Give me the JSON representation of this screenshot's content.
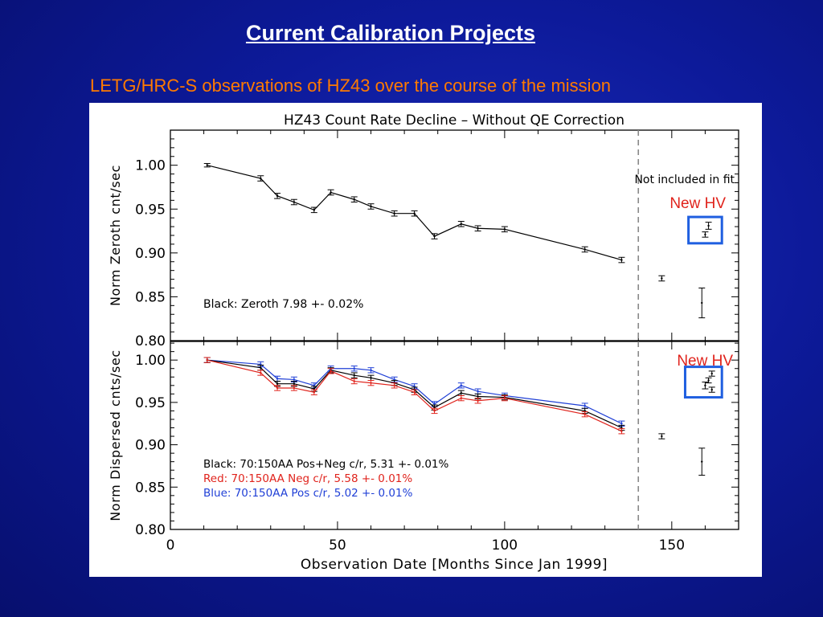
{
  "slide": {
    "title": "Current Calibration Projects",
    "subtitle": "LETG/HRC-S observations of HZ43 over the course of the mission"
  },
  "colors": {
    "background": "#0d1a9a",
    "title": "#ffffff",
    "subtitle": "#ff7a00",
    "black_series": "#000000",
    "red_series": "#e0231c",
    "blue_series": "#1f3fd6",
    "highlight_box": "#1f5fe0",
    "new_hv_label": "#e0231c"
  },
  "chart_data": [
    {
      "type": "line",
      "title": "HZ43 Count Rate Decline – Without QE Correction",
      "xlabel": "",
      "ylabel": "Norm Zeroth cnt/sec",
      "xlim": [
        0,
        170
      ],
      "ylim": [
        0.8,
        1.04
      ],
      "yticks": [
        "0.80",
        "0.85",
        "0.90",
        "0.95",
        "1.00"
      ],
      "grid": false,
      "annotations": {
        "fit_note": "Not included in fit",
        "new_hv": "New HV",
        "legend_text": "Black: Zeroth 7.98 +- 0.02%"
      },
      "vline_x": 140,
      "series": [
        {
          "color": "black",
          "x": [
            11,
            27,
            32,
            37,
            43,
            48,
            55,
            60,
            67,
            73,
            79,
            87,
            92,
            100,
            124,
            135
          ],
          "y": [
            1.0,
            0.985,
            0.965,
            0.958,
            0.949,
            0.969,
            0.961,
            0.953,
            0.945,
            0.945,
            0.919,
            0.933,
            0.928,
            0.927,
            0.904,
            0.892
          ],
          "err": [
            0.002,
            0.003,
            0.003,
            0.003,
            0.003,
            0.003,
            0.003,
            0.003,
            0.003,
            0.003,
            0.003,
            0.003,
            0.003,
            0.003,
            0.003,
            0.003
          ]
        }
      ],
      "excluded_points": [
        {
          "x": 147,
          "y": 0.871,
          "err": 0.003
        },
        {
          "x": 159,
          "y": 0.843,
          "err": 0.017
        },
        {
          "x": 161,
          "y": 0.931,
          "err": 0.004
        },
        {
          "x": 160,
          "y": 0.921,
          "err": 0.003
        }
      ],
      "highlight_box_x": [
        155,
        165
      ],
      "highlight_box_y": [
        0.911,
        0.941
      ]
    },
    {
      "type": "line",
      "title": "",
      "xlabel": "Observation Date [Months Since Jan 1999]",
      "ylabel": "Norm Dispersed cnts/sec",
      "xlim": [
        0,
        170
      ],
      "ylim": [
        0.8,
        1.022
      ],
      "xticks": [
        "0",
        "50",
        "100",
        "150"
      ],
      "yticks": [
        "0.80",
        "0.85",
        "0.90",
        "0.95",
        "1.00"
      ],
      "grid": false,
      "annotations": {
        "new_hv": "New HV",
        "legend_lines": [
          "Black: 70:150AA Pos+Neg c/r, 5.31 +- 0.01%",
          "Red:    70:150AA Neg c/r, 5.58 +- 0.01%",
          "Blue:   70:150AA Pos c/r, 5.02 +- 0.01%"
        ]
      },
      "vline_x": 140,
      "series": [
        {
          "color": "blue",
          "x": [
            11,
            27,
            32,
            37,
            43,
            48,
            55,
            60,
            67,
            73,
            79,
            87,
            92,
            100,
            124,
            135
          ],
          "y": [
            1.0,
            0.995,
            0.978,
            0.977,
            0.97,
            0.99,
            0.99,
            0.988,
            0.977,
            0.969,
            0.948,
            0.97,
            0.963,
            0.958,
            0.946,
            0.925
          ]
        },
        {
          "color": "black",
          "x": [
            11,
            27,
            32,
            37,
            43,
            48,
            55,
            60,
            67,
            73,
            79,
            87,
            92,
            100,
            124,
            135
          ],
          "y": [
            1.0,
            0.991,
            0.972,
            0.972,
            0.966,
            0.988,
            0.982,
            0.979,
            0.973,
            0.965,
            0.944,
            0.961,
            0.957,
            0.956,
            0.94,
            0.92
          ]
        },
        {
          "color": "red",
          "x": [
            11,
            27,
            32,
            37,
            43,
            48,
            55,
            60,
            67,
            73,
            79,
            87,
            92,
            100,
            124,
            135
          ],
          "y": [
            1.0,
            0.985,
            0.967,
            0.967,
            0.962,
            0.987,
            0.975,
            0.973,
            0.97,
            0.962,
            0.94,
            0.955,
            0.952,
            0.955,
            0.936,
            0.916
          ]
        }
      ],
      "excluded_points": [
        {
          "x": 147,
          "y": 0.91,
          "err": 0.003
        },
        {
          "x": 159,
          "y": 0.88,
          "err": 0.016
        },
        {
          "x": 162,
          "y": 0.984,
          "err": 0.003
        },
        {
          "x": 161,
          "y": 0.976,
          "err": 0.003
        },
        {
          "x": 160,
          "y": 0.97,
          "err": 0.004
        },
        {
          "x": 162,
          "y": 0.965,
          "err": 0.003
        }
      ],
      "highlight_box_x": [
        154,
        165
      ],
      "highlight_box_y": [
        0.956,
        0.992
      ]
    }
  ]
}
